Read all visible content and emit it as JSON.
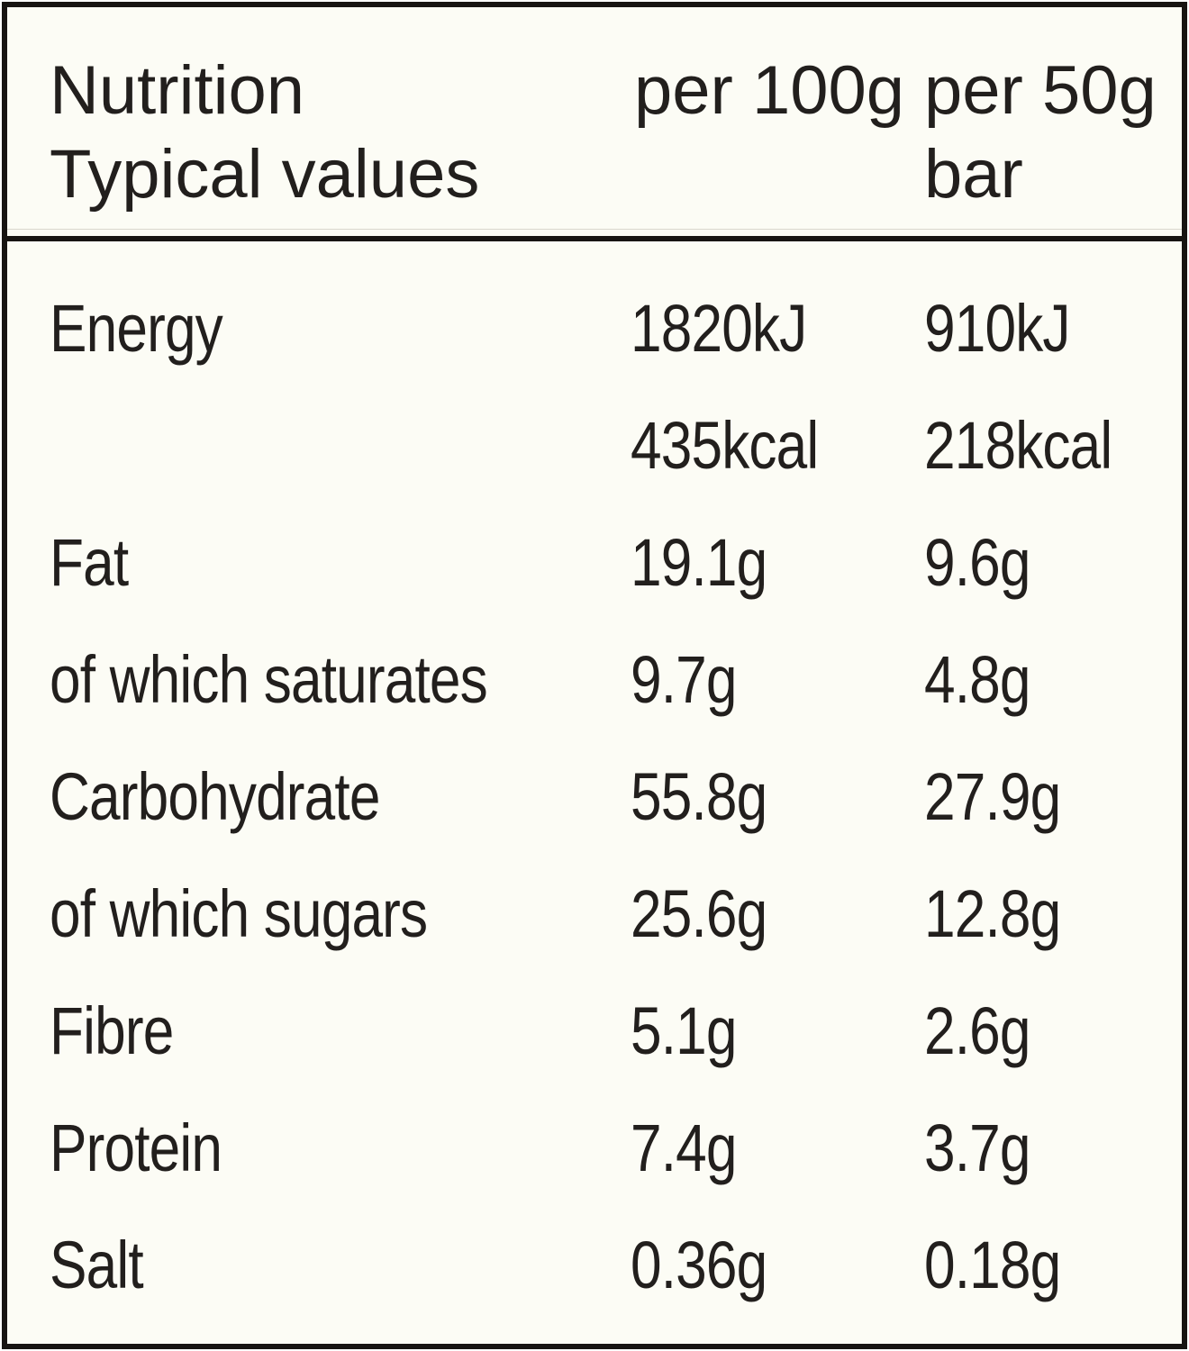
{
  "label": {
    "header": {
      "title_line1": "Nutrition",
      "title_line2": "Typical values",
      "col_per100": "per 100g",
      "col_per50_line1": "per 50g",
      "col_per50_line2": "bar"
    },
    "rows": [
      {
        "label": "Energy",
        "per100": "1820kJ",
        "per50": "910kJ"
      },
      {
        "label": "",
        "per100": "435kcal",
        "per50": "218kcal"
      },
      {
        "label": "Fat",
        "per100": "19.1g",
        "per50": "9.6g"
      },
      {
        "label": "of which saturates",
        "per100": "9.7g",
        "per50": "4.8g"
      },
      {
        "label": "Carbohydrate",
        "per100": "55.8g",
        "per50": "27.9g"
      },
      {
        "label": "of which sugars",
        "per100": "25.6g",
        "per50": "12.8g"
      },
      {
        "label": "Fibre",
        "per100": "5.1g",
        "per50": "2.6g"
      },
      {
        "label": "Protein",
        "per100": "7.4g",
        "per50": "3.7g"
      },
      {
        "label": "Salt",
        "per100": "0.36g",
        "per50": "0.18g"
      }
    ],
    "colors": {
      "background": "#fcfcf5",
      "border": "#171412",
      "text": "#221f1d"
    }
  }
}
